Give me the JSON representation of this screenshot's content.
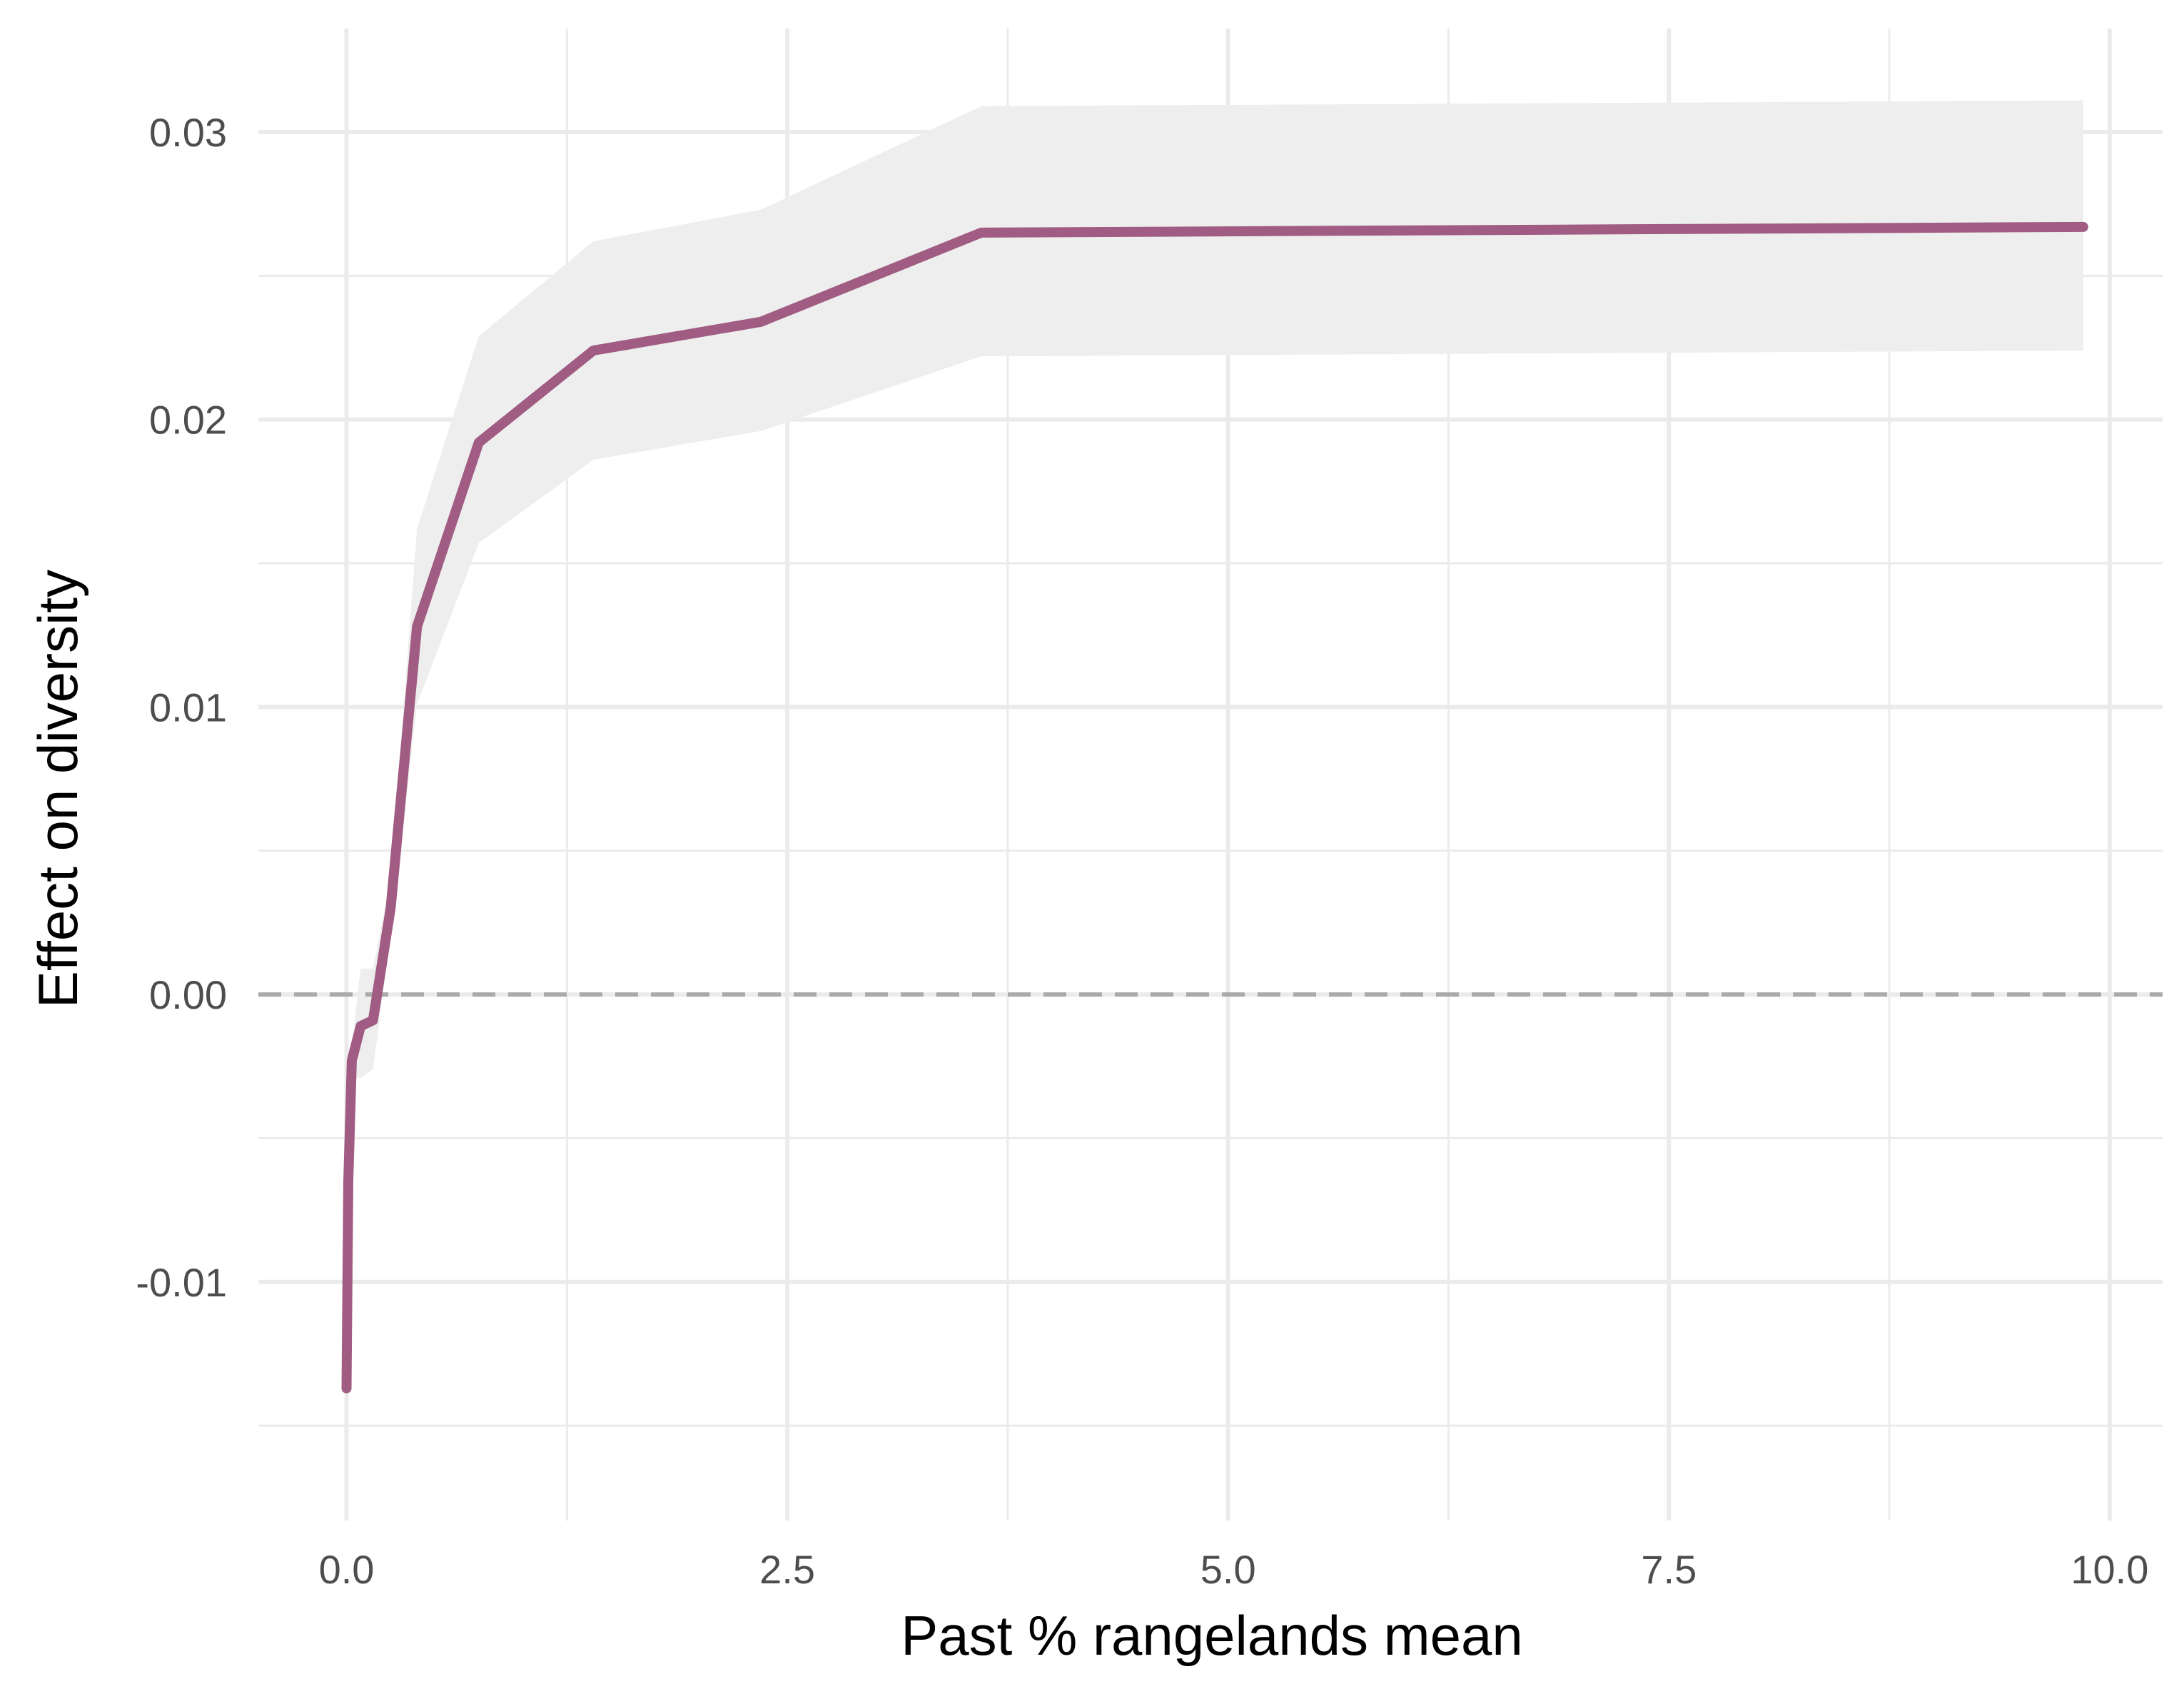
{
  "chart_data": {
    "type": "line",
    "title": "",
    "xlabel": "Past % rangelands mean",
    "ylabel": "Effect on diversity",
    "xlim": [
      -0.5,
      10.3
    ],
    "ylim": [
      -0.0183,
      0.0336
    ],
    "x_ticks": [
      0.0,
      2.5,
      5.0,
      7.5,
      10.0
    ],
    "x_tick_labels": [
      "0.0",
      "2.5",
      "5.0",
      "7.5",
      "10.0"
    ],
    "x_minor_ticks": [
      1.25,
      3.75,
      6.25,
      8.75
    ],
    "y_ticks": [
      -0.01,
      0.0,
      0.01,
      0.02,
      0.03
    ],
    "y_tick_labels": [
      "-0.01",
      "0.00",
      "0.01",
      "0.02",
      "0.03"
    ],
    "y_minor_ticks": [
      -0.015,
      -0.005,
      0.005,
      0.015,
      0.025
    ],
    "grid": true,
    "reference_line": {
      "y": 0.0,
      "style": "dashed",
      "color": "#aaaaaa"
    },
    "series": [
      {
        "line_color": "#a05c82",
        "ribbon_color": "#eeeeee",
        "points": [
          {
            "x": 0.0,
            "y": -0.0137,
            "lower": -0.0137,
            "upper": -0.0137
          },
          {
            "x": 0.01,
            "y": -0.0065,
            "lower": -0.0068,
            "upper": -0.0062
          },
          {
            "x": 0.03,
            "y": -0.0023,
            "lower": -0.0029,
            "upper": -0.0018
          },
          {
            "x": 0.08,
            "y": -0.0011,
            "lower": -0.0029,
            "upper": 0.0009
          },
          {
            "x": 0.15,
            "y": -0.0009,
            "lower": -0.0026,
            "upper": 0.0009
          },
          {
            "x": 0.25,
            "y": 0.003,
            "lower": 0.002,
            "upper": 0.004
          },
          {
            "x": 0.4,
            "y": 0.0128,
            "lower": 0.0101,
            "upper": 0.0162
          },
          {
            "x": 0.75,
            "y": 0.0192,
            "lower": 0.0157,
            "upper": 0.0229
          },
          {
            "x": 1.4,
            "y": 0.0224,
            "lower": 0.0186,
            "upper": 0.0262
          },
          {
            "x": 2.35,
            "y": 0.0234,
            "lower": 0.0196,
            "upper": 0.0273
          },
          {
            "x": 3.6,
            "y": 0.0265,
            "lower": 0.0222,
            "upper": 0.0309
          },
          {
            "x": 9.85,
            "y": 0.0267,
            "lower": 0.0224,
            "upper": 0.0311
          }
        ]
      }
    ]
  }
}
